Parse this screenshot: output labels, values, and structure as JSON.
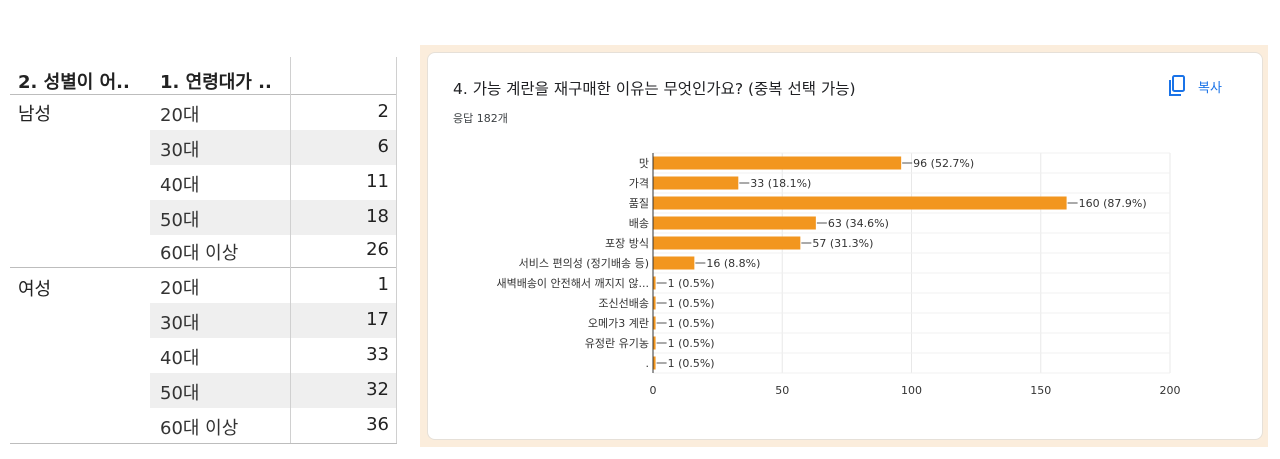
{
  "pivot": {
    "col1_header": "2. 성별이 어..",
    "col2_header": "1. 연령대가 ..",
    "groups": [
      {
        "gender": "남성",
        "rows": [
          {
            "age": "20대",
            "count": "2"
          },
          {
            "age": "30대",
            "count": "6"
          },
          {
            "age": "40대",
            "count": "11"
          },
          {
            "age": "50대",
            "count": "18"
          },
          {
            "age": "60대 이상",
            "count": "26"
          }
        ]
      },
      {
        "gender": "여성",
        "rows": [
          {
            "age": "20대",
            "count": "1"
          },
          {
            "age": "30대",
            "count": "17"
          },
          {
            "age": "40대",
            "count": "33"
          },
          {
            "age": "50대",
            "count": "32"
          },
          {
            "age": "60대 이상",
            "count": "36"
          }
        ]
      }
    ]
  },
  "card": {
    "question": "4. 가능 계란을 재구매한 이유는 무엇인가요? (중복 선택 가능)",
    "responses": "응답 182개",
    "copy_label": "복사",
    "copy_icon": "copy-icon"
  },
  "colors": {
    "bar": "#f2961f",
    "accent": "#1a73e8",
    "frame": "#fbeddc"
  },
  "chart_data": {
    "type": "bar",
    "orientation": "horizontal",
    "categories": [
      "맛",
      "가격",
      "품질",
      "배송",
      "포장 방식",
      "서비스 편의성 (정기배송 등)",
      "새벽배송이 안전해서 깨지지 않...",
      "조신선배송",
      "오메가3 계란",
      "유정란 유기농",
      "."
    ],
    "values": [
      96,
      33,
      160,
      63,
      57,
      16,
      1,
      1,
      1,
      1,
      1
    ],
    "data_labels": [
      "96 (52.7%)",
      "33 (18.1%)",
      "160 (87.9%)",
      "63 (34.6%)",
      "57 (31.3%)",
      "16 (8.8%)",
      "1 (0.5%)",
      "1 (0.5%)",
      "1 (0.5%)",
      "1 (0.5%)",
      "1 (0.5%)"
    ],
    "x_ticks": [
      "0",
      "50",
      "100",
      "150",
      "200"
    ],
    "xlim": [
      0,
      200
    ],
    "grid": true
  }
}
